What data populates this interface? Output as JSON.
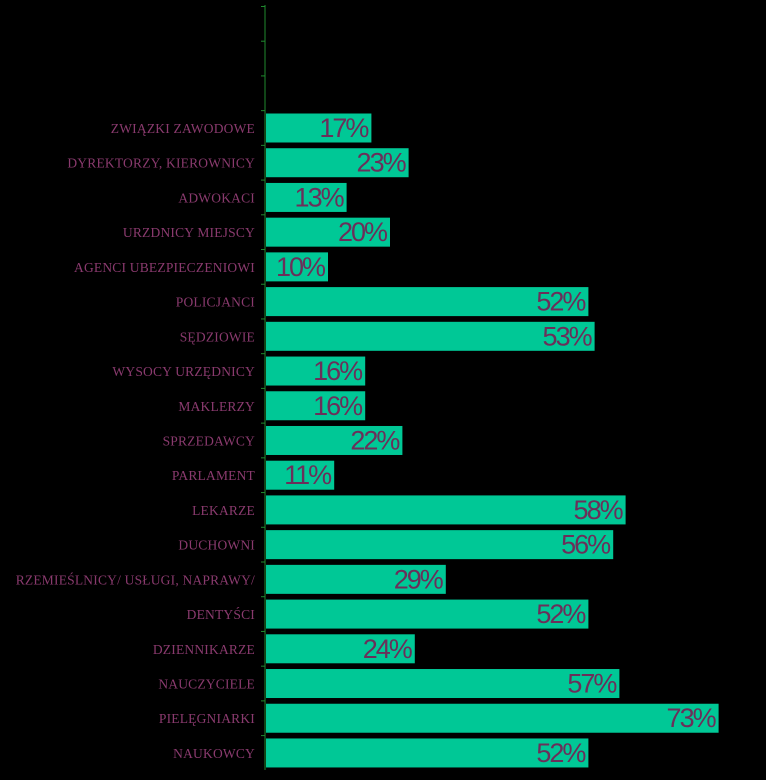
{
  "chart_data": {
    "type": "bar",
    "orientation": "horizontal",
    "categories": [
      "ZWIĄZKI ZAWODOWE",
      "DYREKTORZY, KIEROWNICY",
      "ADWOKACI",
      "URZDNICY MIEJSCY",
      "AGENCI UBEZPIECZENIOWI",
      "POLICJANCI",
      "SĘDZIOWIE",
      "WYSOCY URZĘDNICY",
      "MAKLERZY",
      "SPRZEDAWCY",
      "PARLAMENT",
      "LEKARZE",
      "DUCHOWNI",
      "RZEMIEŚLNICY/ USŁUGI, NAPRAWY/",
      "DENTYŚCI",
      "DZIENNIKARZE",
      "NAUCZYCIELE",
      "PIELĘGNIARKI",
      "NAUKOWCY"
    ],
    "values": [
      17,
      23,
      13,
      20,
      10,
      52,
      53,
      16,
      16,
      22,
      11,
      58,
      56,
      29,
      52,
      24,
      57,
      73,
      52
    ],
    "data_labels": [
      "17%",
      "23%",
      "13%",
      "20%",
      "10%",
      "52%",
      "53%",
      "16%",
      "16%",
      "22%",
      "11%",
      "58%",
      "56%",
      "29%",
      "52%",
      "24%",
      "57%",
      "73%",
      "52%"
    ],
    "title": "",
    "xlabel": "",
    "ylabel": "",
    "xlim": [
      0,
      80
    ],
    "grid": false,
    "legend": "none",
    "colors": {
      "background": "#000000",
      "bar": "#00c896",
      "axis": "#1f8a2e",
      "category_text": "#8a3a6e",
      "data_label_text": "#6b2f5a"
    }
  }
}
